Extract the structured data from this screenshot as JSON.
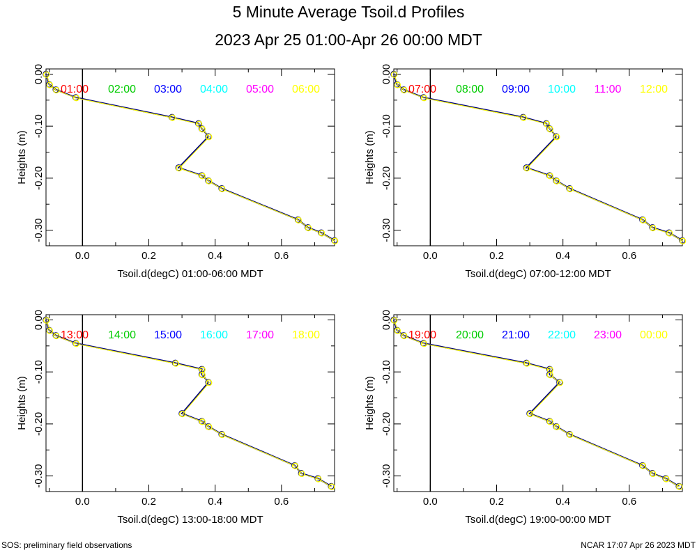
{
  "header": {
    "title": "5 Minute Average Tsoil.d Profiles",
    "subtitle": "2023 Apr 25 01:00-Apr 26 00:00 MDT"
  },
  "footer": {
    "left": "SOS: preliminary field observations",
    "right": "NCAR 17:07 Apr 26 2023 MDT"
  },
  "colors": {
    "hour_label_colors": [
      "#ff0000",
      "#00cc00",
      "#0000ff",
      "#00ffff",
      "#ff00ff",
      "#ffff00"
    ],
    "trace_light": "#ffff00",
    "trace_dark": "#000080",
    "axis": "#000000"
  },
  "chart_data": [
    {
      "type": "line",
      "xlabel": "Tsoil.d(degC) 01:00-06:00 MDT",
      "ylabel": "Heights (m)",
      "xlim": [
        -0.11,
        0.76
      ],
      "ylim": [
        -0.33,
        0.01
      ],
      "xticks": [
        "0.0",
        "0.2",
        "0.4",
        "0.6"
      ],
      "yticks": [
        "0.00",
        "-0.10",
        "-0.20",
        "-0.30"
      ],
      "series_labels": [
        "01:00",
        "02:00",
        "03:00",
        "04:00",
        "05:00",
        "06:00"
      ],
      "x": [
        -0.11,
        -0.1,
        -0.08,
        -0.02,
        0.27,
        0.35,
        0.36,
        0.38,
        0.29,
        0.36,
        0.38,
        0.42,
        0.65,
        0.68,
        0.72,
        0.76
      ],
      "y": [
        0.0,
        -0.02,
        -0.03,
        -0.045,
        -0.083,
        -0.095,
        -0.105,
        -0.12,
        -0.18,
        -0.195,
        -0.205,
        -0.22,
        -0.28,
        -0.295,
        -0.305,
        -0.32
      ]
    },
    {
      "type": "line",
      "xlabel": "Tsoil.d(degC) 07:00-12:00 MDT",
      "ylabel": "Heights (m)",
      "xlim": [
        -0.11,
        0.76
      ],
      "ylim": [
        -0.33,
        0.01
      ],
      "xticks": [
        "0.0",
        "0.2",
        "0.4",
        "0.6"
      ],
      "yticks": [
        "0.00",
        "-0.10",
        "-0.20",
        "-0.30"
      ],
      "series_labels": [
        "07:00",
        "08:00",
        "09:00",
        "10:00",
        "11:00",
        "12:00"
      ],
      "x": [
        -0.11,
        -0.1,
        -0.08,
        -0.02,
        0.28,
        0.35,
        0.36,
        0.38,
        0.29,
        0.36,
        0.38,
        0.42,
        0.64,
        0.67,
        0.72,
        0.76
      ],
      "y": [
        0.0,
        -0.02,
        -0.03,
        -0.045,
        -0.083,
        -0.095,
        -0.105,
        -0.12,
        -0.18,
        -0.195,
        -0.205,
        -0.22,
        -0.28,
        -0.295,
        -0.305,
        -0.32
      ]
    },
    {
      "type": "line",
      "xlabel": "Tsoil.d(degC) 13:00-18:00 MDT",
      "ylabel": "Heights (m)",
      "xlim": [
        -0.11,
        0.76
      ],
      "ylim": [
        -0.33,
        0.01
      ],
      "xticks": [
        "0.0",
        "0.2",
        "0.4",
        "0.6"
      ],
      "yticks": [
        "0.00",
        "-0.10",
        "-0.20",
        "-0.30"
      ],
      "series_labels": [
        "13:00",
        "14:00",
        "15:00",
        "16:00",
        "17:00",
        "18:00"
      ],
      "x": [
        -0.11,
        -0.1,
        -0.08,
        -0.02,
        0.28,
        0.36,
        0.36,
        0.38,
        0.3,
        0.36,
        0.38,
        0.42,
        0.64,
        0.66,
        0.71,
        0.75
      ],
      "y": [
        0.0,
        -0.02,
        -0.03,
        -0.045,
        -0.083,
        -0.095,
        -0.105,
        -0.12,
        -0.18,
        -0.195,
        -0.205,
        -0.22,
        -0.28,
        -0.295,
        -0.305,
        -0.32
      ]
    },
    {
      "type": "line",
      "xlabel": "Tsoil.d(degC) 19:00-00:00 MDT",
      "ylabel": "Heights (m)",
      "xlim": [
        -0.11,
        0.76
      ],
      "ylim": [
        -0.33,
        0.01
      ],
      "xticks": [
        "0.0",
        "0.2",
        "0.4",
        "0.6"
      ],
      "yticks": [
        "0.00",
        "-0.10",
        "-0.20",
        "-0.30"
      ],
      "series_labels": [
        "19:00",
        "20:00",
        "21:00",
        "22:00",
        "23:00",
        "00:00"
      ],
      "x": [
        -0.11,
        -0.1,
        -0.08,
        -0.02,
        0.29,
        0.36,
        0.36,
        0.39,
        0.3,
        0.36,
        0.38,
        0.42,
        0.64,
        0.67,
        0.71,
        0.75
      ],
      "y": [
        0.0,
        -0.02,
        -0.03,
        -0.045,
        -0.083,
        -0.095,
        -0.105,
        -0.12,
        -0.18,
        -0.195,
        -0.205,
        -0.22,
        -0.28,
        -0.295,
        -0.305,
        -0.32
      ]
    }
  ]
}
